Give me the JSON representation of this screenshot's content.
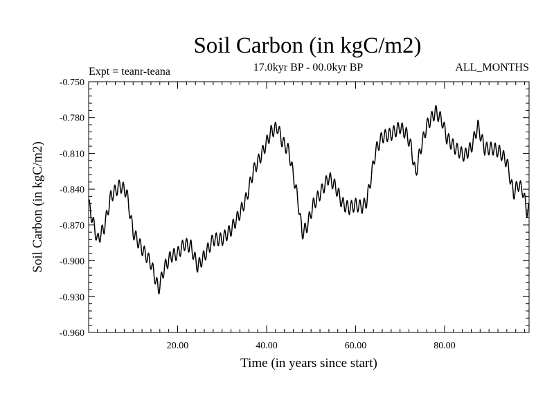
{
  "chart_data": {
    "type": "line",
    "title": "Soil Carbon (in kgC/m2)",
    "subtitle": "17.0kyr BP - 00.0kyr BP",
    "left_label": "Expt = teanr-teana",
    "right_label": "ALL_MONTHS",
    "xlabel": "Time (in years since start)",
    "ylabel": "Soil Carbon (in kgC/m2)",
    "xlim": [
      0,
      99
    ],
    "ylim": [
      -0.96,
      -0.75
    ],
    "x_ticks": [
      20,
      40,
      60,
      80
    ],
    "x_tick_labels": [
      "20.00",
      "40.00",
      "60.00",
      "80.00"
    ],
    "y_ticks": [
      -0.75,
      -0.78,
      -0.81,
      -0.84,
      -0.87,
      -0.9,
      -0.93,
      -0.96
    ],
    "y_tick_labels": [
      "-0.750",
      "-0.780",
      "-0.810",
      "-0.840",
      "-0.870",
      "-0.900",
      "-0.930",
      "-0.960"
    ],
    "grid": false,
    "ripple": {
      "period_years": 0.95,
      "amplitude": 0.0055
    },
    "series": [
      {
        "name": "Soil Carbon",
        "color": "#000000",
        "anchors": [
          [
            0,
            -0.852
          ],
          [
            2,
            -0.883
          ],
          [
            3.5,
            -0.872
          ],
          [
            5,
            -0.846
          ],
          [
            7,
            -0.837
          ],
          [
            8.5,
            -0.842
          ],
          [
            10,
            -0.876
          ],
          [
            12,
            -0.89
          ],
          [
            14,
            -0.902
          ],
          [
            15.7,
            -0.924
          ],
          [
            17,
            -0.906
          ],
          [
            18.5,
            -0.896
          ],
          [
            20,
            -0.894
          ],
          [
            21.5,
            -0.886
          ],
          [
            23,
            -0.888
          ],
          [
            24.5,
            -0.905
          ],
          [
            26,
            -0.896
          ],
          [
            28,
            -0.882
          ],
          [
            30,
            -0.882
          ],
          [
            32,
            -0.874
          ],
          [
            34,
            -0.86
          ],
          [
            35.5,
            -0.847
          ],
          [
            37,
            -0.825
          ],
          [
            39,
            -0.81
          ],
          [
            41,
            -0.792
          ],
          [
            42.5,
            -0.788
          ],
          [
            43.5,
            -0.8
          ],
          [
            45,
            -0.808
          ],
          [
            47,
            -0.848
          ],
          [
            48,
            -0.877
          ],
          [
            49,
            -0.872
          ],
          [
            50.5,
            -0.853
          ],
          [
            52,
            -0.844
          ],
          [
            54,
            -0.83
          ],
          [
            55.5,
            -0.838
          ],
          [
            57,
            -0.852
          ],
          [
            58.5,
            -0.856
          ],
          [
            60,
            -0.853
          ],
          [
            61.5,
            -0.855
          ],
          [
            62.5,
            -0.85
          ],
          [
            63.5,
            -0.83
          ],
          [
            64.5,
            -0.808
          ],
          [
            66,
            -0.796
          ],
          [
            68,
            -0.794
          ],
          [
            70,
            -0.788
          ],
          [
            71.5,
            -0.794
          ],
          [
            72.5,
            -0.805
          ],
          [
            73.5,
            -0.828
          ],
          [
            74.5,
            -0.808
          ],
          [
            76,
            -0.787
          ],
          [
            78,
            -0.775
          ],
          [
            79.5,
            -0.783
          ],
          [
            80.5,
            -0.797
          ],
          [
            82.5,
            -0.806
          ],
          [
            84.5,
            -0.812
          ],
          [
            86,
            -0.805
          ],
          [
            87.5,
            -0.787
          ],
          [
            89,
            -0.806
          ],
          [
            91,
            -0.806
          ],
          [
            92.5,
            -0.809
          ],
          [
            94,
            -0.817
          ],
          [
            95.5,
            -0.844
          ],
          [
            96.5,
            -0.836
          ],
          [
            97.5,
            -0.84
          ],
          [
            98.5,
            -0.858
          ],
          [
            99,
            -0.857
          ]
        ]
      }
    ]
  }
}
